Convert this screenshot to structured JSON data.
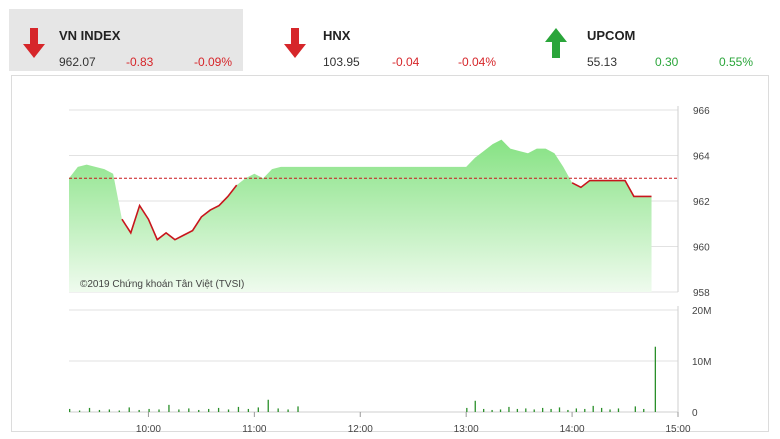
{
  "indices": [
    {
      "name": "VN INDEX",
      "value": "962.07",
      "change": "-0.83",
      "percent": "-0.09%",
      "direction": "down"
    },
    {
      "name": "HNX",
      "value": "103.95",
      "change": "-0.04",
      "percent": "-0.04%",
      "direction": "down"
    },
    {
      "name": "UPCOM",
      "value": "55.13",
      "change": "0.30",
      "percent": "0.55%",
      "direction": "up"
    }
  ],
  "colors": {
    "down": "#d6262a",
    "up": "#2aa53a",
    "area": "#8fe68c",
    "volume": "#2a8f2a"
  },
  "watermark": "©2019 Chứng khoán Tân Việt (TVSI)",
  "chart_data": [
    {
      "type": "area",
      "series_line_after_index": 1,
      "reference": 963.0,
      "x": [
        "09:15",
        "09:20",
        "09:25",
        "09:30",
        "09:35",
        "09:40",
        "09:45",
        "09:50",
        "09:55",
        "10:00",
        "10:05",
        "10:10",
        "10:15",
        "10:20",
        "10:25",
        "10:30",
        "10:35",
        "10:40",
        "10:45",
        "10:50",
        "10:55",
        "11:00",
        "11:05",
        "11:10",
        "11:15",
        "11:20",
        "11:25",
        "11:30",
        "13:00",
        "13:05",
        "13:10",
        "13:15",
        "13:20",
        "13:25",
        "13:30",
        "13:35",
        "13:40",
        "13:45",
        "13:50",
        "13:55",
        "14:00",
        "14:05",
        "14:10",
        "14:15",
        "14:20",
        "14:25",
        "14:30",
        "14:35",
        "14:40",
        "14:45"
      ],
      "values": [
        963.0,
        963.5,
        963.6,
        963.5,
        963.4,
        963.2,
        961.2,
        960.6,
        961.8,
        961.2,
        960.3,
        960.6,
        960.3,
        960.5,
        960.7,
        961.3,
        961.6,
        961.8,
        962.2,
        962.7,
        963.0,
        963.2,
        963.0,
        963.4,
        963.5,
        963.5,
        963.5,
        963.5,
        963.5,
        963.9,
        964.2,
        964.5,
        964.7,
        964.3,
        964.2,
        964.1,
        964.3,
        964.3,
        964.1,
        963.5,
        962.8,
        962.6,
        962.9,
        962.9,
        962.9,
        962.9,
        962.9,
        962.2,
        962.2,
        962.2
      ],
      "ylim": [
        958,
        966
      ],
      "yticks": [
        "966",
        "964",
        "962",
        "960",
        "958"
      ]
    },
    {
      "type": "bar",
      "x_ticks": [
        "10:00",
        "11:00",
        "12:00",
        "13:00",
        "14:00",
        "15:00"
      ],
      "yticks": [
        "20M",
        "10M",
        "0"
      ],
      "ylim": [
        0,
        20
      ],
      "values_millions": [
        0.6,
        0.3,
        0.8,
        0.4,
        0.5,
        0.3,
        0.9,
        0.4,
        0.6,
        0.5,
        1.4,
        0.5,
        0.7,
        0.4,
        0.6,
        0.8,
        0.5,
        1.0,
        0.6,
        0.9,
        2.4,
        0.7,
        0.5,
        1.1,
        0.8,
        2.2,
        0.6,
        0.4,
        0.5,
        1.0,
        0.6,
        0.7,
        0.5,
        0.8,
        0.6,
        0.9,
        0.4,
        0.7,
        0.6,
        1.2,
        0.8,
        0.5,
        0.7,
        12.8,
        1.1,
        0.6
      ]
    }
  ]
}
